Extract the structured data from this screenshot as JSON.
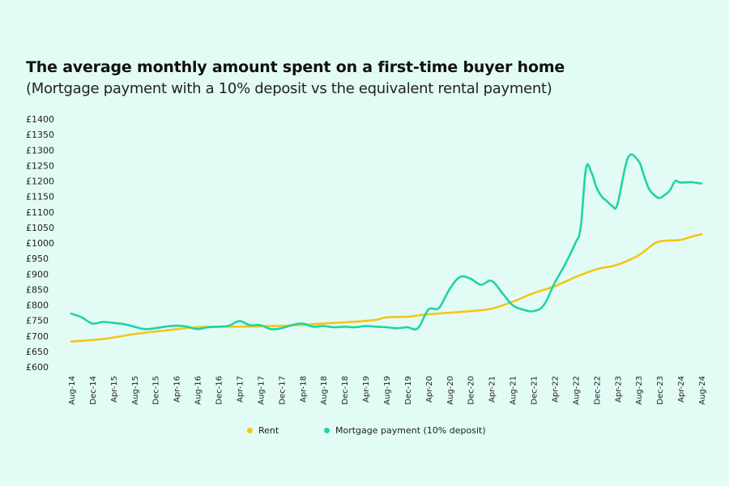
{
  "chart_data": {
    "type": "line",
    "title": "The average monthly amount spent on a first-time buyer home",
    "subtitle": "(Mortgage payment with a 10% deposit vs the equivalent rental payment)",
    "xlabel": "",
    "ylabel": "",
    "ylim": [
      600,
      1400
    ],
    "y_ticks": [
      "£600",
      "£650",
      "£700",
      "£750",
      "£800",
      "£850",
      "£900",
      "£950",
      "£1000",
      "£1050",
      "£1100",
      "£1150",
      "£1200",
      "£1250",
      "£1300",
      "£1350",
      "£1400"
    ],
    "x_tick_labels": [
      "Aug-14",
      "Dec-14",
      "Apr-15",
      "Aug-15",
      "Dec-15",
      "Apr-16",
      "Aug-16",
      "Dec-16",
      "Apr-17",
      "Aug-17",
      "Dec-17",
      "Apr-18",
      "Aug-18",
      "Dec-18",
      "Apr-19",
      "Aug-19",
      "Dec-19",
      "Apr-20",
      "Aug-20",
      "Dec-20",
      "Apr-21",
      "Aug-21",
      "Dec-21",
      "Apr-22",
      "Aug-22",
      "Dec-22",
      "Apr-23",
      "Aug-23",
      "Dec-23",
      "Apr-24",
      "Aug-24"
    ],
    "x_tick_months": [
      0,
      4,
      8,
      12,
      16,
      20,
      24,
      28,
      32,
      36,
      40,
      44,
      48,
      52,
      56,
      60,
      64,
      68,
      72,
      76,
      80,
      84,
      88,
      92,
      96,
      100,
      104,
      108,
      112,
      116,
      120
    ],
    "legend_position": "bottom",
    "grid": false,
    "series": [
      {
        "name": "Rent",
        "color": "#f5c518",
        "points": [
          [
            0,
            682
          ],
          [
            6,
            690
          ],
          [
            12,
            706
          ],
          [
            18,
            718
          ],
          [
            24,
            728
          ],
          [
            30,
            730
          ],
          [
            36,
            731
          ],
          [
            42,
            734
          ],
          [
            48,
            740
          ],
          [
            54,
            746
          ],
          [
            58,
            752
          ],
          [
            60,
            760
          ],
          [
            64,
            762
          ],
          [
            68,
            770
          ],
          [
            72,
            775
          ],
          [
            76,
            780
          ],
          [
            80,
            788
          ],
          [
            84,
            810
          ],
          [
            88,
            838
          ],
          [
            92,
            860
          ],
          [
            96,
            890
          ],
          [
            100,
            915
          ],
          [
            104,
            930
          ],
          [
            108,
            960
          ],
          [
            110,
            985
          ],
          [
            112,
            1005
          ],
          [
            116,
            1010
          ],
          [
            118,
            1020
          ],
          [
            120,
            1028
          ]
        ]
      },
      {
        "name": "Mortgage payment (10% deposit)",
        "color": "#1ed4a6",
        "points": [
          [
            0,
            772
          ],
          [
            2,
            760
          ],
          [
            4,
            740
          ],
          [
            6,
            745
          ],
          [
            8,
            742
          ],
          [
            10,
            738
          ],
          [
            12,
            730
          ],
          [
            14,
            722
          ],
          [
            16,
            725
          ],
          [
            18,
            730
          ],
          [
            20,
            733
          ],
          [
            22,
            730
          ],
          [
            24,
            722
          ],
          [
            26,
            728
          ],
          [
            28,
            730
          ],
          [
            30,
            733
          ],
          [
            32,
            748
          ],
          [
            34,
            735
          ],
          [
            36,
            735
          ],
          [
            38,
            722
          ],
          [
            40,
            725
          ],
          [
            42,
            735
          ],
          [
            44,
            740
          ],
          [
            46,
            730
          ],
          [
            48,
            732
          ],
          [
            50,
            728
          ],
          [
            52,
            730
          ],
          [
            54,
            728
          ],
          [
            56,
            732
          ],
          [
            58,
            730
          ],
          [
            60,
            728
          ],
          [
            62,
            725
          ],
          [
            64,
            728
          ],
          [
            66,
            725
          ],
          [
            68,
            785
          ],
          [
            70,
            790
          ],
          [
            72,
            850
          ],
          [
            74,
            890
          ],
          [
            76,
            885
          ],
          [
            78,
            865
          ],
          [
            80,
            878
          ],
          [
            82,
            840
          ],
          [
            84,
            800
          ],
          [
            86,
            785
          ],
          [
            88,
            780
          ],
          [
            90,
            800
          ],
          [
            92,
            870
          ],
          [
            94,
            930
          ],
          [
            96,
            1000
          ],
          [
            97,
            1050
          ],
          [
            98,
            1240
          ],
          [
            99,
            1230
          ],
          [
            100,
            1180
          ],
          [
            101,
            1150
          ],
          [
            102,
            1135
          ],
          [
            103,
            1120
          ],
          [
            104,
            1125
          ],
          [
            106,
            1275
          ],
          [
            108,
            1265
          ],
          [
            109,
            1220
          ],
          [
            110,
            1175
          ],
          [
            111,
            1155
          ],
          [
            112,
            1145
          ],
          [
            113,
            1155
          ],
          [
            114,
            1170
          ],
          [
            115,
            1200
          ],
          [
            116,
            1195
          ],
          [
            118,
            1196
          ],
          [
            120,
            1192
          ]
        ]
      }
    ]
  }
}
